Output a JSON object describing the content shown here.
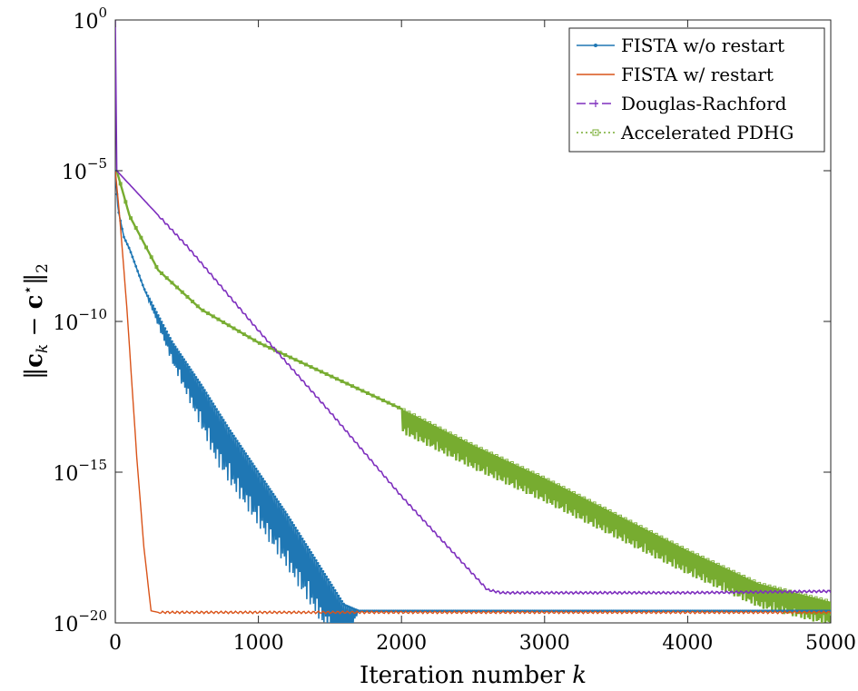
{
  "chart_data": {
    "type": "line",
    "title": "",
    "xlabel": "Iteration number k",
    "ylabel": "||c_k − c*||_2",
    "xlim": [
      0,
      5000
    ],
    "ylim_log10": [
      -20,
      0
    ],
    "yscale": "log",
    "grid": false,
    "legend_position": "top-right",
    "x_ticks": [
      "0",
      "1000",
      "2000",
      "3000",
      "4000",
      "5000"
    ],
    "y_ticks": [
      {
        "base": "10",
        "exp": "0"
      },
      {
        "base": "10",
        "exp": "−5"
      },
      {
        "base": "10",
        "exp": "−10"
      },
      {
        "base": "10",
        "exp": "−15"
      },
      {
        "base": "10",
        "exp": "−20"
      }
    ],
    "series": [
      {
        "name": "FISTA w/o restart",
        "color": "#1f77b4",
        "style": "solid-dot",
        "x": [
          0,
          20,
          60,
          100,
          200,
          300,
          400,
          500,
          600,
          800,
          1000,
          1200,
          1400,
          1600,
          1700,
          1800,
          2000,
          3000,
          4000,
          5000
        ],
        "y_log10": [
          -5,
          -6.3,
          -7.2,
          -7.6,
          -8.9,
          -9.8,
          -10.7,
          -11.4,
          -12.1,
          -13.6,
          -15.0,
          -16.4,
          -17.9,
          -19.4,
          -19.6,
          -19.6,
          -19.6,
          -19.6,
          -19.6,
          -19.6
        ],
        "oscillation": {
          "start": 200,
          "end": 1700,
          "depth": 1.8
        }
      },
      {
        "name": "FISTA w/ restart",
        "color": "#d95319",
        "style": "solid",
        "x": [
          0,
          30,
          80,
          150,
          200,
          250,
          300,
          1000,
          2000,
          3000,
          4000,
          5000
        ],
        "y_log10": [
          -5,
          -6.5,
          -9.5,
          -14.5,
          -17.5,
          -19.6,
          -19.65,
          -19.65,
          -19.65,
          -19.65,
          -19.65,
          -19.65
        ]
      },
      {
        "name": "Douglas-Rachford",
        "color": "#7e2fbe",
        "style": "dash-tick",
        "x": [
          0,
          10,
          500,
          1000,
          1500,
          2000,
          2600,
          2700,
          3000,
          4000,
          5000
        ],
        "y_log10": [
          0,
          -5,
          -7.5,
          -10.3,
          -13.0,
          -15.8,
          -18.9,
          -19.0,
          -19.0,
          -19.0,
          -18.95
        ]
      },
      {
        "name": "Accelerated PDHG",
        "color": "#77ac30",
        "style": "dotted-square",
        "x": [
          0,
          10,
          100,
          300,
          600,
          1000,
          1500,
          2000,
          2500,
          3000,
          3500,
          4000,
          4500,
          5000
        ],
        "y_log10": [
          -5,
          -5.0,
          -6.5,
          -8.3,
          -9.6,
          -10.7,
          -11.8,
          -12.9,
          -14.1,
          -15.2,
          -16.4,
          -17.6,
          -18.7,
          -19.3
        ],
        "oscillation": {
          "start": 2000,
          "end": 5000,
          "depth": 0.8
        }
      }
    ]
  }
}
